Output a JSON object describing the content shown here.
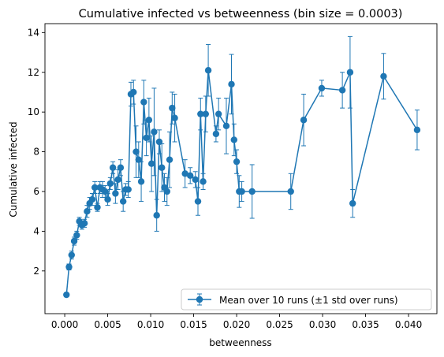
{
  "chart_data": {
    "type": "line",
    "title": "Cumulative infected vs betweenness (bin size = 0.0003)",
    "xlabel": "betweenness",
    "ylabel": "Cumulative infected",
    "xlim": [
      -0.0023,
      0.0433
    ],
    "ylim": [
      -0.15,
      14.45
    ],
    "x_ticks": [
      0.0,
      0.005,
      0.01,
      0.015,
      0.02,
      0.025,
      0.03,
      0.035,
      0.04
    ],
    "x_tick_labels": [
      "0.000",
      "0.005",
      "0.010",
      "0.015",
      "0.020",
      "0.025",
      "0.030",
      "0.035",
      "0.040"
    ],
    "y_ticks": [
      2,
      4,
      6,
      8,
      10,
      12,
      14
    ],
    "y_tick_labels": [
      "2",
      "4",
      "6",
      "8",
      "10",
      "12",
      "14"
    ],
    "grid": false,
    "legend_position": "lower-right",
    "series": [
      {
        "name": "Mean over 10 runs (±1 std over runs)",
        "color": "#1f77b4",
        "marker": "circle",
        "x": [
          0.0002,
          0.0005,
          0.0008,
          0.0011,
          0.0014,
          0.0017,
          0.002,
          0.0023,
          0.0026,
          0.0029,
          0.0032,
          0.0035,
          0.0038,
          0.0041,
          0.0044,
          0.0047,
          0.005,
          0.0053,
          0.0056,
          0.0059,
          0.0062,
          0.0065,
          0.0068,
          0.0071,
          0.0074,
          0.0077,
          0.008,
          0.0083,
          0.0086,
          0.0089,
          0.0092,
          0.0095,
          0.0098,
          0.0101,
          0.0104,
          0.0107,
          0.011,
          0.0113,
          0.0116,
          0.0119,
          0.0122,
          0.0125,
          0.0128,
          0.014,
          0.0146,
          0.0152,
          0.0155,
          0.0158,
          0.0161,
          0.0164,
          0.0167,
          0.0176,
          0.0179,
          0.0188,
          0.0194,
          0.0197,
          0.02,
          0.0203,
          0.0206,
          0.0218,
          0.0263,
          0.0278,
          0.0299,
          0.0323,
          0.0332,
          0.0335,
          0.0371,
          0.041
        ],
        "y": [
          0.8,
          2.2,
          2.8,
          3.5,
          3.8,
          4.5,
          4.3,
          4.4,
          5.0,
          5.4,
          5.6,
          6.2,
          5.2,
          6.2,
          6.1,
          6.0,
          5.6,
          6.4,
          7.2,
          5.9,
          6.6,
          7.2,
          5.5,
          6.1,
          6.1,
          10.9,
          11.0,
          8.0,
          7.6,
          6.5,
          10.5,
          8.7,
          9.6,
          7.4,
          9.0,
          4.8,
          8.5,
          7.2,
          6.2,
          6.0,
          7.6,
          10.2,
          9.7,
          6.9,
          6.8,
          6.6,
          5.5,
          9.9,
          6.5,
          9.9,
          12.1,
          8.9,
          9.9,
          9.3,
          11.4,
          8.6,
          7.5,
          6.0,
          6.0,
          6.0,
          6.0,
          9.6,
          11.2,
          11.1,
          12.0,
          5.4,
          11.8,
          9.1
        ],
        "error": [
          0.1,
          0.15,
          0.2,
          0.2,
          0.2,
          0.2,
          0.2,
          0.2,
          0.3,
          0.3,
          0.3,
          0.3,
          0.2,
          0.3,
          0.4,
          0.3,
          0.3,
          0.3,
          0.3,
          0.5,
          0.5,
          0.4,
          0.5,
          0.3,
          0.4,
          0.6,
          0.6,
          1.3,
          0.9,
          1.0,
          1.1,
          0.9,
          1.1,
          1.4,
          2.2,
          0.8,
          0.6,
          1.2,
          0.7,
          0.7,
          1.4,
          0.8,
          1.2,
          0.7,
          0.4,
          0.4,
          0.7,
          0.8,
          0.4,
          0.9,
          1.3,
          0.4,
          0.8,
          1.4,
          1.5,
          0.8,
          0.6,
          0.8,
          0.5,
          1.35,
          0.9,
          1.3,
          0.4,
          0.9,
          1.8,
          0.7,
          1.15,
          1.0
        ]
      }
    ]
  }
}
